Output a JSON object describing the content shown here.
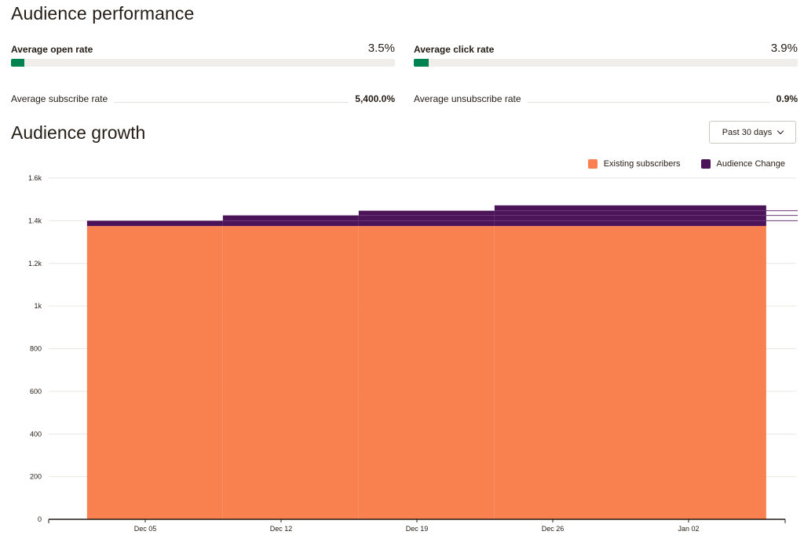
{
  "performance": {
    "title": "Audience performance",
    "open_rate": {
      "label": "Average open rate",
      "value": "3.5%",
      "fraction": 0.035
    },
    "click_rate": {
      "label": "Average click rate",
      "value": "3.9%",
      "fraction": 0.039
    },
    "subscribe_rate": {
      "label": "Average subscribe rate",
      "value": "5,400.0%"
    },
    "unsubscribe_rate": {
      "label": "Average unsubscribe rate",
      "value": "0.9%"
    }
  },
  "growth": {
    "title": "Audience growth",
    "range_button": "Past 30 days"
  },
  "colors": {
    "existing": "#f9814f",
    "change": "#4b1459",
    "progress": "#00834f"
  },
  "chart_data": {
    "type": "area",
    "stacked": true,
    "step": true,
    "x_ticks": [
      "Dec 05",
      "Dec 12",
      "Dec 19",
      "Dec 26",
      "Jan 02"
    ],
    "y_ticks": [
      "0",
      "200",
      "400",
      "600",
      "800",
      "1k",
      "1.2k",
      "1.4k",
      "1.6k"
    ],
    "ylim": [
      0,
      1600
    ],
    "grid": true,
    "legend_position": "top-right",
    "legend": [
      "Existing subscribers",
      "Audience Change"
    ],
    "segments": [
      {
        "from": "Dec 02",
        "to": "Dec 09",
        "existing": 1375,
        "change": 25
      },
      {
        "from": "Dec 09",
        "to": "Dec 16",
        "existing": 1375,
        "change": 50
      },
      {
        "from": "Dec 16",
        "to": "Dec 23",
        "existing": 1375,
        "change": 72
      },
      {
        "from": "Dec 23",
        "to": "Jan 06",
        "existing": 1375,
        "change": 97
      }
    ]
  }
}
